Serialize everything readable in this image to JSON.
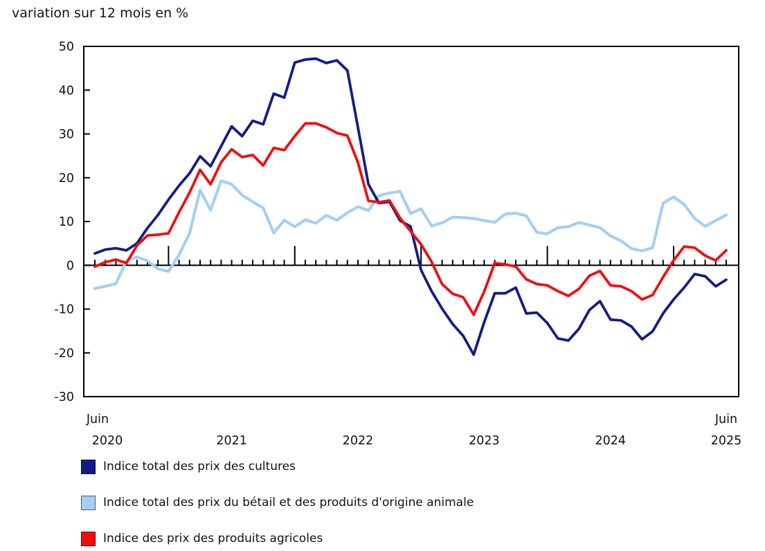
{
  "chart_data": {
    "type": "line",
    "title": "variation sur 12 mois en %",
    "ylabel": "",
    "xlabel": "",
    "ylim": [
      -30,
      50
    ],
    "yticks": [
      50,
      40,
      30,
      20,
      10,
      0,
      -10,
      -20,
      -30
    ],
    "grid": false,
    "legend_position": "bottom-left",
    "x_axis": {
      "start_label": {
        "line1": "Juin",
        "line2": "2020"
      },
      "end_label": {
        "line1": "Juin",
        "line2": "2025"
      },
      "year_labels": [
        {
          "label": "2021",
          "month_index": 13
        },
        {
          "label": "2022",
          "month_index": 25
        },
        {
          "label": "2023",
          "month_index": 37
        },
        {
          "label": "2024",
          "month_index": 49
        }
      ],
      "long_tick_month_indices": [
        7,
        19,
        31,
        43,
        55
      ]
    },
    "months": [
      "2020-06",
      "2020-07",
      "2020-08",
      "2020-09",
      "2020-10",
      "2020-11",
      "2020-12",
      "2021-01",
      "2021-02",
      "2021-03",
      "2021-04",
      "2021-05",
      "2021-06",
      "2021-07",
      "2021-08",
      "2021-09",
      "2021-10",
      "2021-11",
      "2021-12",
      "2022-01",
      "2022-02",
      "2022-03",
      "2022-04",
      "2022-05",
      "2022-06",
      "2022-07",
      "2022-08",
      "2022-09",
      "2022-10",
      "2022-11",
      "2022-12",
      "2023-01",
      "2023-02",
      "2023-03",
      "2023-04",
      "2023-05",
      "2023-06",
      "2023-07",
      "2023-08",
      "2023-09",
      "2023-10",
      "2023-11",
      "2023-12",
      "2024-01",
      "2024-02",
      "2024-03",
      "2024-04",
      "2024-05",
      "2024-06",
      "2024-07",
      "2024-08",
      "2024-09",
      "2024-10",
      "2024-11",
      "2024-12",
      "2025-01",
      "2025-02",
      "2025-03",
      "2025-04",
      "2025-05",
      "2025-06"
    ],
    "series": [
      {
        "name": "Indice total des prix des cultures",
        "color": "#141b87",
        "values": [
          2.7,
          3.6,
          3.9,
          3.4,
          5.0,
          8.5,
          11.5,
          15.0,
          18.2,
          21.0,
          24.9,
          22.6,
          27.2,
          31.7,
          29.5,
          33.0,
          32.2,
          39.2,
          38.3,
          46.3,
          47.0,
          47.2,
          46.2,
          46.8,
          44.5,
          31.5,
          18.5,
          14.2,
          14.5,
          10.2,
          8.9,
          -1.1,
          -5.9,
          -9.9,
          -13.4,
          -16.1,
          -20.4,
          -13.0,
          -6.4,
          -6.4,
          -5.1,
          -11.0,
          -10.8,
          -13.2,
          -16.7,
          -17.2,
          -14.5,
          -10.2,
          -8.2,
          -12.4,
          -12.6,
          -14.0,
          -16.9,
          -15.1,
          -11.0,
          -7.8,
          -5.1,
          -2.0,
          -2.5,
          -4.8,
          -3.3
        ]
      },
      {
        "name": "Indice total des prix du bétail et des produits d'origine animale",
        "color": "#a6cef2",
        "values": [
          -5.3,
          -4.8,
          -4.2,
          1.0,
          1.9,
          1.0,
          -0.8,
          -1.4,
          2.4,
          7.3,
          17.2,
          12.6,
          19.3,
          18.5,
          16.0,
          14.5,
          13.1,
          7.4,
          10.3,
          8.8,
          10.4,
          9.6,
          11.4,
          10.3,
          12.0,
          13.4,
          12.5,
          15.9,
          16.5,
          16.9,
          11.8,
          12.9,
          9.0,
          9.7,
          11.0,
          10.9,
          10.7,
          10.2,
          9.8,
          11.7,
          11.9,
          11.3,
          7.5,
          7.2,
          8.6,
          8.8,
          9.8,
          9.2,
          8.6,
          6.7,
          5.6,
          3.8,
          3.3,
          4.0,
          14.2,
          15.6,
          13.9,
          10.7,
          8.9,
          10.2,
          11.5
        ]
      },
      {
        "name": "Indice des prix des produits agricoles",
        "color": "#f20d0d",
        "values": [
          -0.3,
          0.7,
          1.3,
          0.5,
          4.5,
          6.8,
          7.0,
          7.3,
          12.1,
          16.6,
          21.8,
          18.5,
          23.5,
          26.5,
          24.7,
          25.2,
          22.8,
          26.8,
          26.3,
          29.5,
          32.4,
          32.4,
          31.5,
          30.2,
          29.6,
          23.5,
          14.7,
          14.4,
          14.8,
          10.8,
          7.8,
          4.8,
          0.8,
          -4.3,
          -6.5,
          -7.3,
          -11.3,
          -6.0,
          0.5,
          0.2,
          -0.3,
          -3.2,
          -4.3,
          -4.6,
          -5.9,
          -7.0,
          -5.4,
          -2.4,
          -1.3,
          -4.6,
          -4.8,
          -5.9,
          -7.8,
          -6.8,
          -2.7,
          1.1,
          4.3,
          4.0,
          2.2,
          1.1,
          3.4
        ]
      }
    ]
  }
}
